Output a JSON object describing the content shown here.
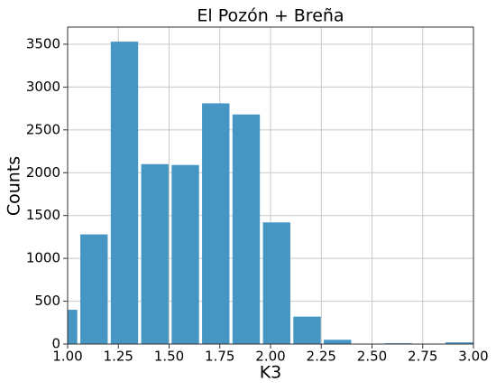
{
  "chart_data": {
    "type": "histogram",
    "title": "El Pozón + Breña",
    "xlabel": "K3",
    "ylabel": "Counts",
    "bins": [
      0.905,
      1.055,
      1.205,
      1.355,
      1.505,
      1.655,
      1.805,
      1.955,
      2.105,
      2.255,
      2.405,
      2.555,
      2.705,
      2.855,
      3.005
    ],
    "values": [
      400,
      1280,
      3530,
      2100,
      2090,
      2810,
      2680,
      1420,
      320,
      50,
      5,
      10,
      5,
      20
    ],
    "color": "#4596c3",
    "xlim": [
      1,
      3
    ],
    "xticks": [
      {
        "value": 1,
        "label": "1.00"
      },
      {
        "value": 1.25,
        "label": "1.25"
      },
      {
        "value": 1.5,
        "label": "1.50"
      },
      {
        "value": 1.75,
        "label": "1.75"
      },
      {
        "value": 2,
        "label": "2.00"
      },
      {
        "value": 2.25,
        "label": "2.25"
      },
      {
        "value": 2.5,
        "label": "2.50"
      },
      {
        "value": 2.75,
        "label": "2.75"
      },
      {
        "value": 3,
        "label": "3.00"
      }
    ],
    "ylim": [
      0,
      3700
    ],
    "yticks": [
      0,
      500,
      1000,
      1500,
      2000,
      2500,
      3000,
      3500
    ],
    "grid": true
  }
}
